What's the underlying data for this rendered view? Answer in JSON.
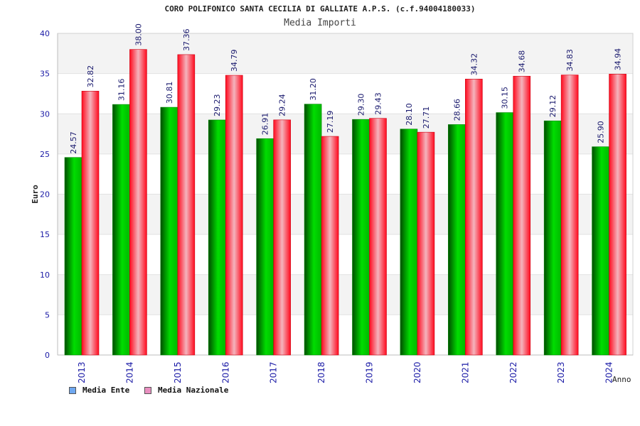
{
  "chart_data": {
    "type": "bar",
    "title": "CORO POLIFONICO SANTA CECILIA DI GALLIATE A.P.S. (c.f.94004180033)",
    "subtitle": "Media Importi",
    "xlabel": "Anno",
    "ylabel": "Euro",
    "ylim": [
      0,
      40
    ],
    "yticks": [
      "0",
      "5",
      "10",
      "15",
      "20",
      "25",
      "30",
      "35",
      "40"
    ],
    "categories": [
      "2013",
      "2014",
      "2015",
      "2016",
      "2017",
      "2018",
      "2019",
      "2020",
      "2021",
      "2022",
      "2023",
      "2024"
    ],
    "series": [
      {
        "name": "Media Ente",
        "values": [
          24.57,
          31.16,
          30.81,
          29.23,
          26.91,
          31.2,
          29.3,
          28.1,
          28.66,
          30.15,
          29.12,
          25.9
        ],
        "labels": [
          "24.57",
          "31.16",
          "30.81",
          "29.23",
          "26.91",
          "31.20",
          "29.30",
          "28.10",
          "28.66",
          "30.15",
          "29.12",
          "25.90"
        ],
        "color": "#00cc00",
        "legend_color": "#6fa8f0"
      },
      {
        "name": "Media Nazionale",
        "values": [
          32.82,
          38.0,
          37.36,
          34.79,
          29.24,
          27.19,
          29.43,
          27.71,
          34.32,
          34.68,
          34.83,
          34.94
        ],
        "labels": [
          "32.82",
          "38.00",
          "37.36",
          "34.79",
          "29.24",
          "27.19",
          "29.43",
          "27.71",
          "34.32",
          "34.68",
          "34.83",
          "34.94"
        ],
        "color": "#ee1122",
        "legend_color": "#e98fc0"
      }
    ],
    "grid": true,
    "legend_position": "bottom-left"
  }
}
